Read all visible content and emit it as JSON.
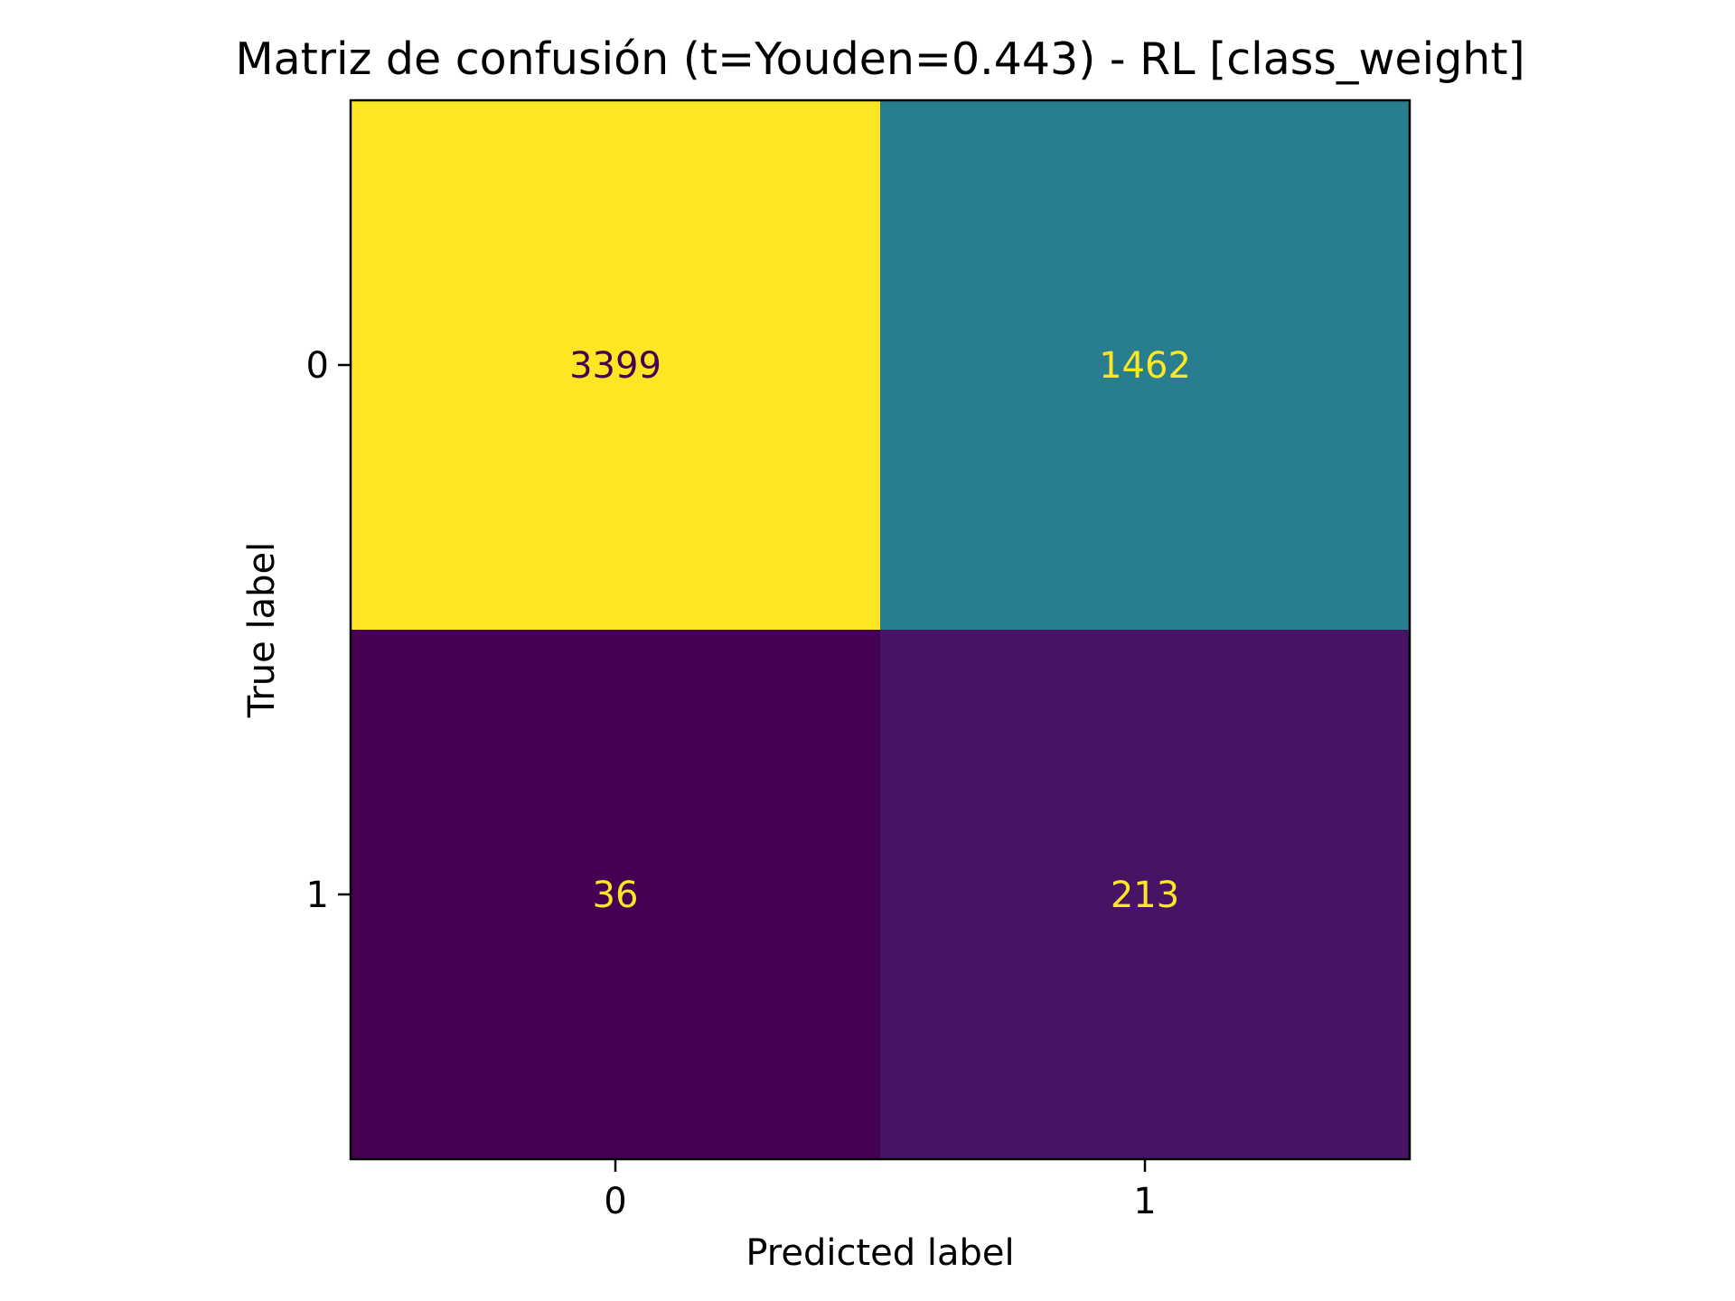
{
  "chart_data": {
    "type": "heatmap",
    "title": "Matriz de confusión (t=Youden=0.443) - RL [class_weight]",
    "xlabel": "Predicted label",
    "ylabel": "True label",
    "x_categories": [
      "0",
      "1"
    ],
    "y_categories": [
      "0",
      "1"
    ],
    "matrix": [
      [
        3399,
        1462
      ],
      [
        36,
        213
      ]
    ],
    "cell_colors": [
      [
        "#fde725",
        "#287d8e"
      ],
      [
        "#440154",
        "#471365"
      ]
    ],
    "text_colors": [
      [
        "#440154",
        "#fde725"
      ],
      [
        "#fde725",
        "#fde725"
      ]
    ],
    "colormap": "viridis",
    "grid": false,
    "colorbar": false
  }
}
